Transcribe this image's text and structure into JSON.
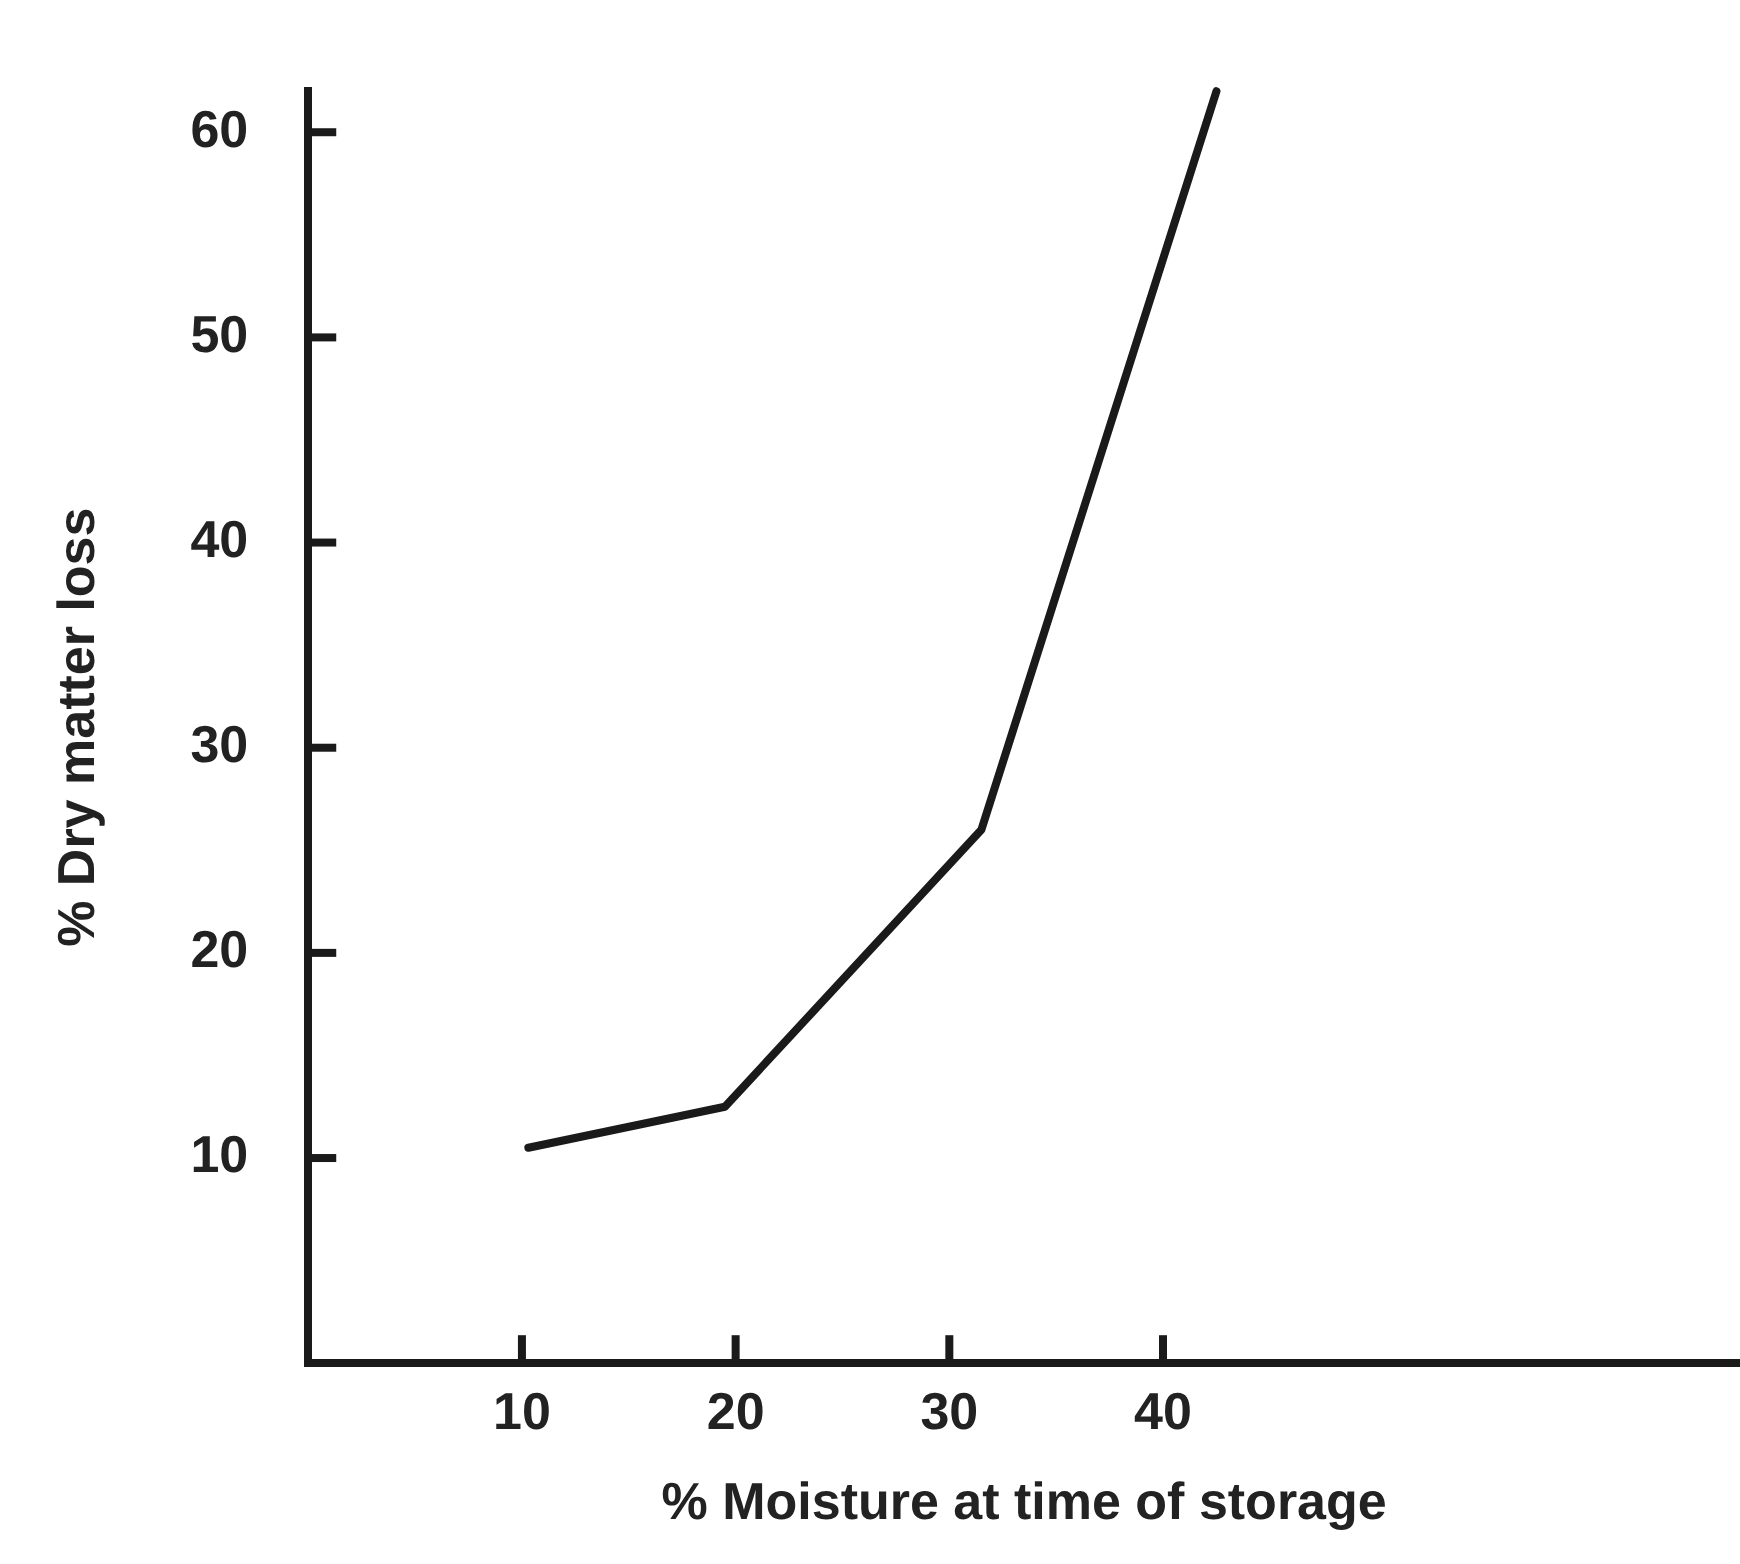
{
  "chart_data": {
    "type": "line",
    "xlabel": "% Moisture at time of storage",
    "ylabel": "% Dry matter loss",
    "x": [
      10.3,
      19.5,
      31.5,
      42.5
    ],
    "series": [
      {
        "color": "#1a1a1a",
        "values": [
          10.5,
          12.5,
          26,
          62
        ]
      }
    ],
    "xlim": [
      0,
      67
    ],
    "xticks": [
      10,
      20,
      30,
      40
    ],
    "ylim": [
      0,
      62
    ],
    "yticks": [
      10,
      20,
      30,
      40,
      50,
      60
    ],
    "grid": false,
    "legend": false,
    "marker": "none",
    "line_style": "solid"
  }
}
